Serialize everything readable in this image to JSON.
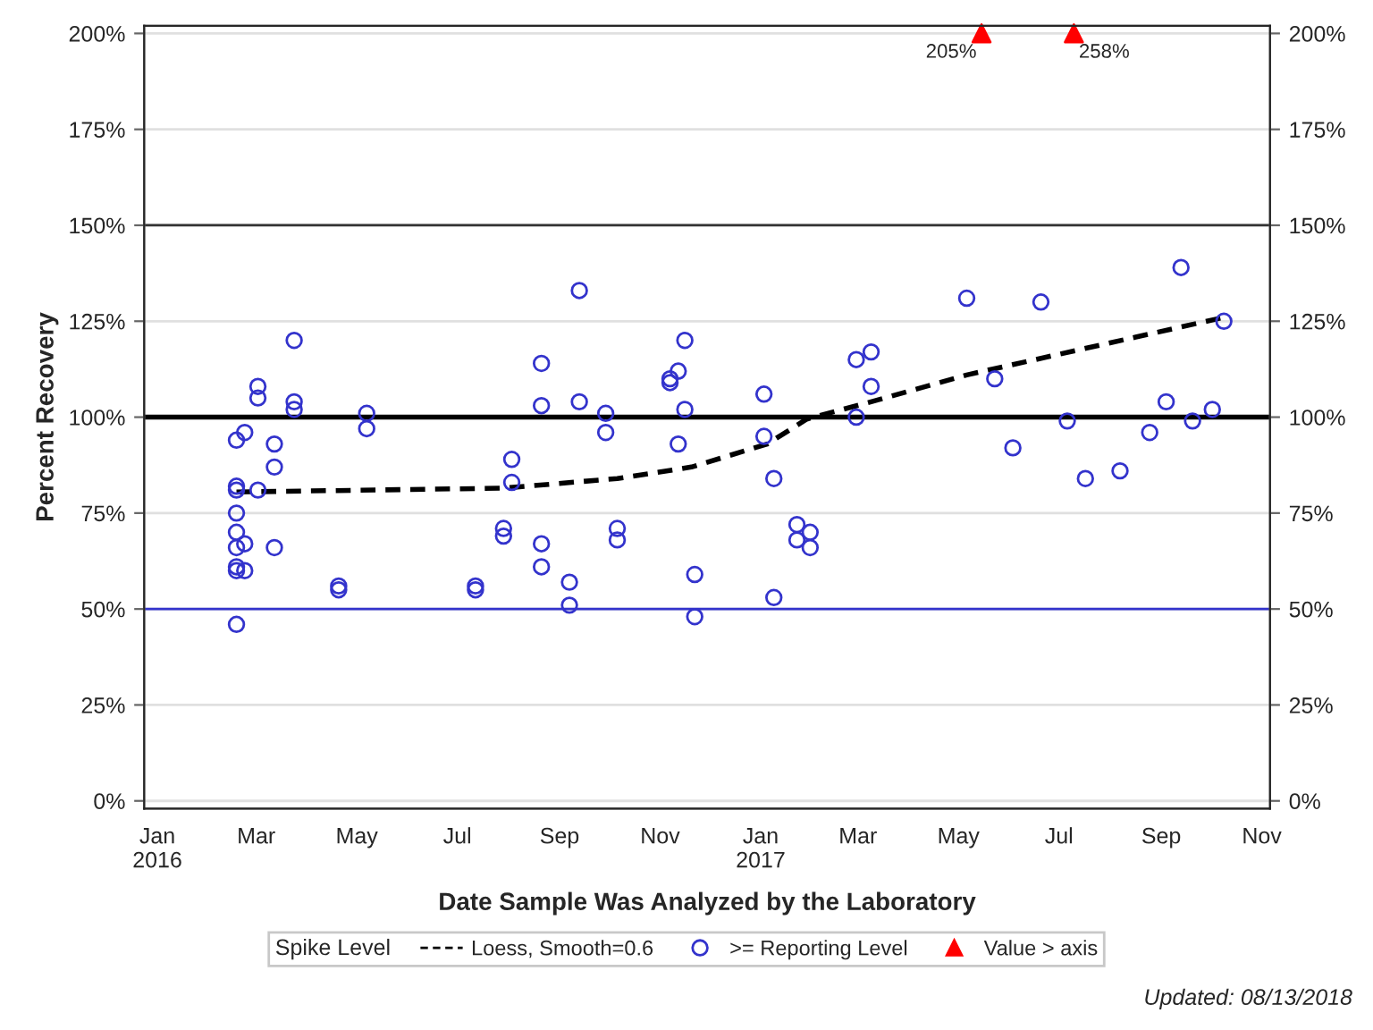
{
  "chart_data": {
    "type": "scatter",
    "xlabel": "Date Sample Was Analyzed by the Laboratory",
    "ylabel": "Percent Recovery",
    "legend_title": "Spike Level",
    "legend": "bottom",
    "grid": "y",
    "xlim": [
      "2015-12-24",
      "2017-11-06"
    ],
    "xticks": [
      {
        "value": "2016-01-01",
        "label": "Jan\n2016"
      },
      {
        "value": "2016-03-01",
        "label": "Mar"
      },
      {
        "value": "2016-05-01",
        "label": "May"
      },
      {
        "value": "2016-07-01",
        "label": "Jul"
      },
      {
        "value": "2016-09-01",
        "label": "Sep"
      },
      {
        "value": "2016-11-01",
        "label": "Nov"
      },
      {
        "value": "2017-01-01",
        "label": "Jan\n2017"
      },
      {
        "value": "2017-03-01",
        "label": "Mar"
      },
      {
        "value": "2017-05-01",
        "label": "May"
      },
      {
        "value": "2017-07-01",
        "label": "Jul"
      },
      {
        "value": "2017-09-01",
        "label": "Sep"
      },
      {
        "value": "2017-11-01",
        "label": "Nov"
      }
    ],
    "ylim": [
      -2,
      202
    ],
    "yticks": [
      {
        "value": 0,
        "label": "0%"
      },
      {
        "value": 25,
        "label": "25%"
      },
      {
        "value": 50,
        "label": "50%"
      },
      {
        "value": 75,
        "label": "75%"
      },
      {
        "value": 100,
        "label": "100%"
      },
      {
        "value": 125,
        "label": "125%"
      },
      {
        "value": 150,
        "label": "150%"
      },
      {
        "value": 175,
        "label": "175%"
      },
      {
        "value": 200,
        "label": "200%"
      }
    ],
    "y2lim": [
      -2,
      202
    ],
    "y2ticks": [
      {
        "value": 0,
        "label": "0%"
      },
      {
        "value": 25,
        "label": "25%"
      },
      {
        "value": 50,
        "label": "50%"
      },
      {
        "value": 75,
        "label": "75%"
      },
      {
        "value": 100,
        "label": "100%"
      },
      {
        "value": 125,
        "label": "125%"
      },
      {
        "value": 150,
        "label": "150%"
      },
      {
        "value": 175,
        "label": "175%"
      },
      {
        "value": 200,
        "label": "200%"
      }
    ],
    "ref_lines": [
      {
        "axis": "y",
        "value": 100,
        "color": "#000000",
        "line_style": "solid"
      },
      {
        "axis": "y",
        "value": 150,
        "color": "#333333",
        "line_style": "solid"
      },
      {
        "axis": "y",
        "value": 50,
        "color": "#3333cc",
        "line_style": "solid"
      }
    ],
    "series": [
      {
        "name": "Loess, Smooth=0.6",
        "type": "line",
        "color": "#000000",
        "line_style": "dashed",
        "marker": "none",
        "x": [
          "2016-02-18",
          "2016-07-29",
          "2016-10-06",
          "2016-11-20",
          "2017-01-05",
          "2017-01-29",
          "2017-03-09",
          "2017-05-06",
          "2017-10-09"
        ],
        "values": [
          80.5,
          81.5,
          84,
          87,
          93,
          99.5,
          104,
          111,
          126
        ]
      },
      {
        "name": ">= Reporting Level",
        "color": "#3333cc",
        "marker": "circle",
        "x": [
          "2016-02-18",
          "2016-02-18",
          "2016-02-18",
          "2016-02-18",
          "2016-02-18",
          "2016-02-18",
          "2016-02-18",
          "2016-02-18",
          "2016-02-18",
          "2016-02-23",
          "2016-02-23",
          "2016-02-23",
          "2016-03-02",
          "2016-03-02",
          "2016-03-02",
          "2016-03-12",
          "2016-03-12",
          "2016-03-12",
          "2016-03-24",
          "2016-03-24",
          "2016-03-24",
          "2016-04-20",
          "2016-04-20",
          "2016-05-07",
          "2016-05-07",
          "2016-07-12",
          "2016-07-12",
          "2016-07-29",
          "2016-07-29",
          "2016-08-03",
          "2016-08-03",
          "2016-08-21",
          "2016-08-21",
          "2016-08-21",
          "2016-08-21",
          "2016-09-07",
          "2016-09-07",
          "2016-09-13",
          "2016-09-13",
          "2016-09-29",
          "2016-09-29",
          "2016-10-06",
          "2016-10-06",
          "2016-11-07",
          "2016-11-07",
          "2016-11-12",
          "2016-11-12",
          "2016-11-16",
          "2016-11-16",
          "2016-11-22",
          "2016-11-22",
          "2017-01-03",
          "2017-01-03",
          "2017-01-09",
          "2017-01-09",
          "2017-01-23",
          "2017-01-23",
          "2017-01-31",
          "2017-01-31",
          "2017-02-28",
          "2017-02-28",
          "2017-03-09",
          "2017-03-09",
          "2017-05-06",
          "2017-05-23",
          "2017-06-03",
          "2017-06-20",
          "2017-07-06",
          "2017-07-17",
          "2017-08-07",
          "2017-08-25",
          "2017-09-04",
          "2017-09-13",
          "2017-09-20",
          "2017-10-02",
          "2017-10-09"
        ],
        "values": [
          94,
          82,
          81,
          75,
          70,
          66,
          61,
          60,
          46,
          96,
          67,
          60,
          108,
          105,
          81,
          93,
          87,
          66,
          120,
          104,
          102,
          56,
          55,
          101,
          97,
          56,
          55,
          71,
          69,
          89,
          83,
          114,
          103,
          67,
          61,
          57,
          51,
          133,
          104,
          101,
          96,
          71,
          68,
          109,
          110,
          112,
          93,
          120,
          102,
          59,
          48,
          106,
          95,
          84,
          53,
          72,
          68,
          70,
          66,
          115,
          100,
          117,
          108,
          131,
          110,
          92,
          130,
          99,
          84,
          86,
          96,
          104,
          139,
          99,
          102,
          125
        ]
      },
      {
        "name": "Value > axis",
        "color": "#ff0000",
        "marker": "triangle",
        "x": [
          "2017-05-15",
          "2017-07-10"
        ],
        "values": [
          200,
          200
        ]
      }
    ],
    "annotations": [
      {
        "text": "205%",
        "x": "2017-05-15",
        "y": 200
      },
      {
        "text": "258%",
        "x": "2017-07-10",
        "y": 200
      },
      "Updated: 08/13/2018"
    ]
  }
}
